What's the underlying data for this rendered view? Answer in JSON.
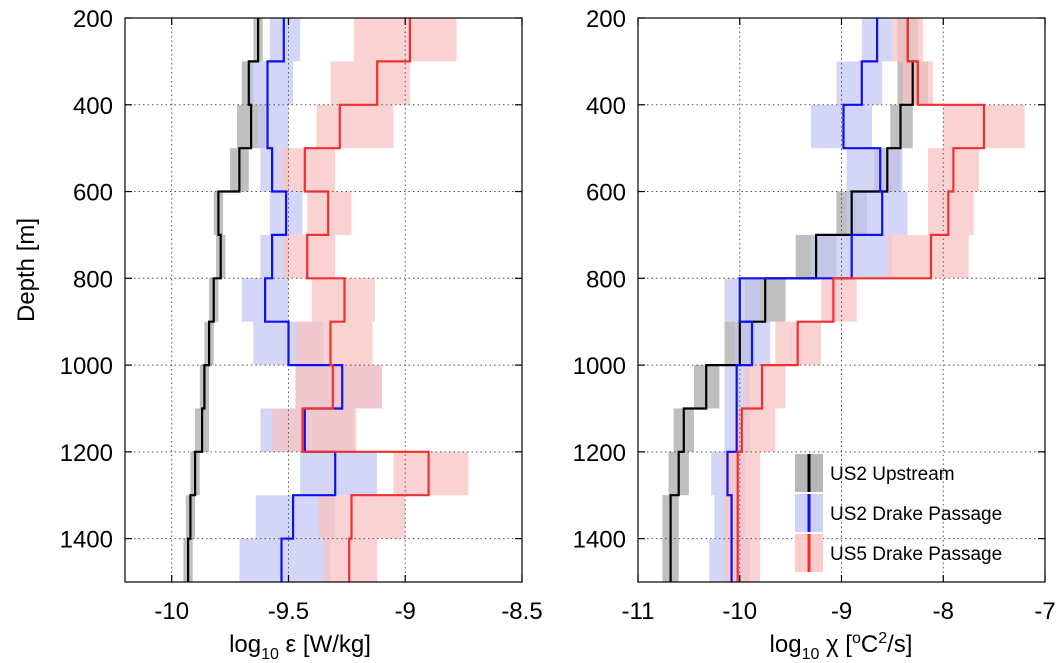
{
  "chart_data": [
    {
      "type": "line",
      "xlabel_prefix": "log",
      "xlabel_sub": "10",
      "xlabel_rest": " ε [W/kg]",
      "ylabel": "Depth [m]",
      "xlim": [
        -10.2,
        -8.5
      ],
      "ylim": [
        1500,
        200
      ],
      "xticks": [
        -10,
        -9.5,
        -9,
        -8.5
      ],
      "xtick_labels": [
        "-10",
        "-9.5",
        "-9",
        "-8.5"
      ],
      "yticks": [
        200,
        400,
        600,
        800,
        1000,
        1200,
        1400
      ],
      "ytick_labels": [
        "200",
        "400",
        "600",
        "800",
        "1000",
        "1200",
        "1400"
      ],
      "grid": true,
      "depth_bins": [
        200,
        300,
        400,
        500,
        600,
        700,
        800,
        900,
        1000,
        1100,
        1200,
        1300,
        1400,
        1500
      ],
      "series": [
        {
          "key": "us2u",
          "values": [
            -9.63,
            -9.67,
            -9.66,
            -9.71,
            -9.8,
            -9.79,
            -9.82,
            -9.84,
            -9.86,
            -9.87,
            -9.9,
            -9.92,
            -9.93,
            -9.96
          ],
          "lower": [
            -9.65,
            -9.7,
            -9.72,
            -9.75,
            -9.82,
            -9.81,
            -9.84,
            -9.86,
            -9.88,
            -9.9,
            -9.92,
            -9.94,
            -9.95,
            -9.98
          ],
          "upper": [
            -9.61,
            -9.65,
            -9.6,
            -9.67,
            -9.78,
            -9.77,
            -9.8,
            -9.82,
            -9.84,
            -9.84,
            -9.88,
            -9.9,
            -9.91,
            -9.88
          ]
        },
        {
          "key": "us2d",
          "values": [
            -9.52,
            -9.59,
            -9.59,
            -9.57,
            -9.51,
            -9.57,
            -9.6,
            -9.5,
            -9.27,
            -9.43,
            -9.3,
            -9.48,
            -9.53,
            -9.53
          ],
          "lower": [
            -9.58,
            -9.66,
            -9.63,
            -9.62,
            -9.58,
            -9.62,
            -9.7,
            -9.65,
            -9.47,
            -9.62,
            -9.45,
            -9.64,
            -9.71,
            -9.71
          ],
          "upper": [
            -9.45,
            -9.48,
            -9.5,
            -9.5,
            -9.44,
            -9.5,
            -9.5,
            -9.35,
            -9.1,
            -9.22,
            -9.12,
            -9.3,
            -9.32,
            -9.35
          ]
        },
        {
          "key": "us5d",
          "values": [
            -8.98,
            -9.12,
            -9.28,
            -9.43,
            -9.33,
            -9.42,
            -9.26,
            -9.32,
            -9.31,
            -9.44,
            -8.9,
            -9.23,
            -9.24,
            -9.24
          ],
          "lower": [
            -9.22,
            -9.32,
            -9.38,
            -9.53,
            -9.42,
            -9.52,
            -9.4,
            -9.47,
            -9.47,
            -9.57,
            -9.05,
            -9.37,
            -9.35,
            -9.35
          ],
          "upper": [
            -8.78,
            -8.98,
            -9.05,
            -9.3,
            -9.23,
            -9.3,
            -9.13,
            -9.14,
            -9.1,
            -9.21,
            -8.73,
            -9.0,
            -9.12,
            -9.12
          ]
        }
      ]
    },
    {
      "type": "line",
      "xlabel_prefix": "log",
      "xlabel_sub": "10",
      "xlabel_rest": " χ [",
      "xlabel_sup1": "o",
      "xlabel_mid": "C",
      "xlabel_sup2": "2",
      "xlabel_end": "/s]",
      "xlim": [
        -11,
        -7
      ],
      "ylim": [
        1500,
        200
      ],
      "xticks": [
        -11,
        -10,
        -9,
        -8,
        -7
      ],
      "xtick_labels": [
        "-11",
        "-10",
        "-9",
        "-8",
        "-7"
      ],
      "yticks": [
        200,
        400,
        600,
        800,
        1000,
        1200,
        1400
      ],
      "ytick_labels": [
        "200",
        "400",
        "600",
        "800",
        "1000",
        "1200",
        "1400"
      ],
      "grid": true,
      "depth_bins": [
        200,
        300,
        400,
        500,
        600,
        700,
        800,
        900,
        1000,
        1100,
        1200,
        1300,
        1400,
        1500
      ],
      "series": [
        {
          "key": "us2u",
          "values": [
            -8.35,
            -8.3,
            -8.42,
            -8.55,
            -8.9,
            -9.25,
            -9.75,
            -10.0,
            -10.33,
            -10.55,
            -10.6,
            -10.68,
            -10.68,
            -10.7
          ],
          "lower": [
            -8.45,
            -8.45,
            -8.52,
            -8.68,
            -9.05,
            -9.45,
            -9.95,
            -10.15,
            -10.45,
            -10.65,
            -10.7,
            -10.76,
            -10.76,
            -10.78
          ],
          "upper": [
            -8.25,
            -8.15,
            -8.3,
            -8.42,
            -8.75,
            -9.05,
            -9.55,
            -9.85,
            -10.2,
            -10.45,
            -10.5,
            -10.6,
            -10.6,
            -10.62
          ]
        },
        {
          "key": "us2d",
          "values": [
            -8.65,
            -8.8,
            -8.98,
            -8.62,
            -8.6,
            -8.9,
            -10.0,
            -9.88,
            -10.03,
            -10.03,
            -10.12,
            -10.08,
            -10.08,
            -10.1
          ],
          "lower": [
            -8.8,
            -9.05,
            -9.3,
            -8.95,
            -8.95,
            -9.3,
            -10.15,
            -10.05,
            -10.15,
            -10.15,
            -10.28,
            -10.25,
            -10.3,
            -10.3
          ],
          "upper": [
            -8.5,
            -8.6,
            -8.7,
            -8.4,
            -8.35,
            -8.5,
            -9.8,
            -9.7,
            -9.9,
            -9.9,
            -9.95,
            -9.95,
            -9.9,
            -9.9
          ]
        },
        {
          "key": "us5d",
          "values": [
            -8.35,
            -8.25,
            -7.6,
            -7.9,
            -7.95,
            -8.12,
            -9.08,
            -9.43,
            -9.78,
            -9.98,
            -10.02,
            -10.02,
            -10.02,
            -10.02
          ],
          "lower": [
            -8.5,
            -8.4,
            -8.0,
            -8.15,
            -8.15,
            -8.55,
            -9.2,
            -9.65,
            -9.95,
            -10.05,
            -10.15,
            -10.15,
            -10.15,
            -10.15
          ],
          "upper": [
            -8.2,
            -8.1,
            -7.2,
            -7.65,
            -7.7,
            -7.75,
            -8.85,
            -9.2,
            -9.55,
            -9.65,
            -9.8,
            -9.8,
            -9.8,
            -9.8
          ]
        }
      ]
    }
  ],
  "legend": {
    "placement": "bottom-right",
    "entries": [
      {
        "key": "us2u",
        "name": "US2 Upstream"
      },
      {
        "key": "us2d",
        "name": "US2 Drake Passage"
      },
      {
        "key": "us5d",
        "name": "US5 Drake Passage"
      }
    ]
  },
  "colors": {
    "us2u": {
      "line": "#000000",
      "band": "#aaaaaa"
    },
    "us2d": {
      "line": "#1010ee",
      "band": "#c5c8f5"
    },
    "us5d": {
      "line": "#f03030",
      "band": "#f9c3c3"
    }
  }
}
